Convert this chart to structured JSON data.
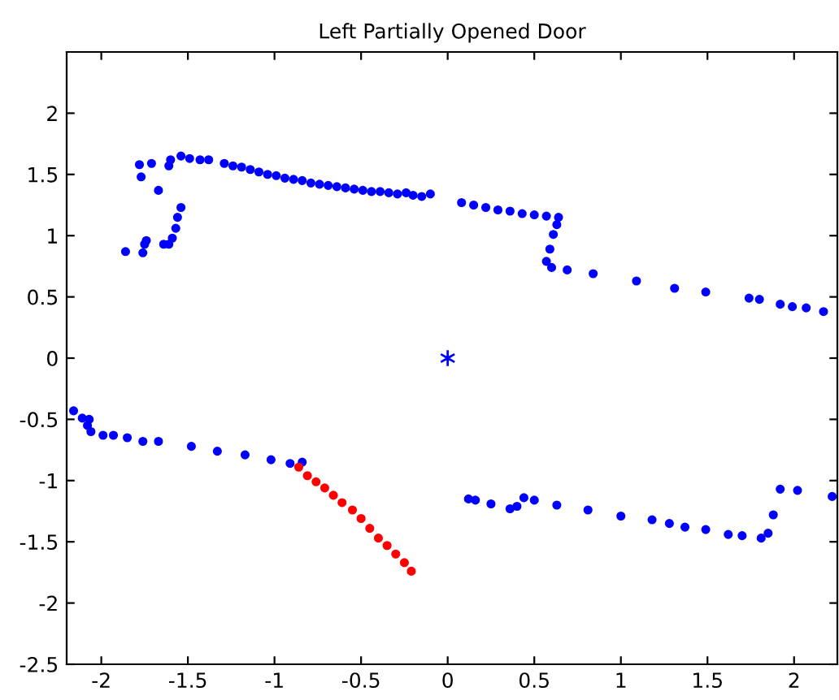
{
  "chart_data": {
    "type": "scatter",
    "title": "Left Partially Opened Door",
    "xlim": [
      -2.2,
      2.25
    ],
    "ylim": [
      -2.5,
      2.5
    ],
    "xticks": [
      -2,
      -1.5,
      -1,
      -0.5,
      0,
      0.5,
      1,
      1.5,
      2
    ],
    "yticks": [
      -2.5,
      -2,
      -1.5,
      -1,
      -0.5,
      0,
      0.5,
      1,
      1.5,
      2
    ],
    "grid": false,
    "legend": false,
    "series": [
      {
        "color": "#0000ff",
        "marker": "circle",
        "x": [
          -1.86,
          -1.78,
          -1.77,
          -1.71,
          -1.67,
          -1.76,
          -1.75,
          -1.74,
          -1.64,
          -1.61,
          -1.59,
          -1.57,
          -1.56,
          -1.54,
          -1.61,
          -1.6,
          -1.54,
          -1.49,
          -1.43,
          -1.38,
          -1.29,
          -1.24,
          -1.19,
          -1.14,
          -1.09,
          -1.04,
          -0.99,
          -0.94,
          -0.89,
          -0.84,
          -0.79,
          -0.74,
          -0.69,
          -0.64,
          -0.59,
          -0.54,
          -0.49,
          -0.44,
          -0.39,
          -0.34,
          -0.29,
          -0.24,
          -0.2,
          -0.15,
          -0.1,
          0.08,
          0.15,
          0.22,
          0.29,
          0.36,
          0.43,
          0.5,
          0.57,
          0.64,
          0.63,
          0.61,
          0.59,
          0.57,
          0.6,
          0.69,
          0.84,
          1.09,
          1.31,
          1.49,
          1.74,
          1.8,
          1.92,
          1.99,
          2.07,
          2.17,
          -2.16,
          -2.11,
          -2.07,
          -2.08,
          -2.06,
          -1.99,
          -1.93,
          -1.85,
          -1.76,
          -1.67,
          -1.48,
          -1.33,
          -1.17,
          -1.02,
          -0.91,
          -0.84,
          0.12,
          0.16,
          0.25,
          0.36,
          0.4,
          0.44,
          0.5,
          0.63,
          0.81,
          1.0,
          1.18,
          1.28,
          1.37,
          1.49,
          1.62,
          1.7,
          1.81,
          1.85,
          1.88,
          1.92,
          2.02,
          2.22
        ],
        "values": [
          0.87,
          1.58,
          1.48,
          1.59,
          1.37,
          0.86,
          0.93,
          0.96,
          0.93,
          0.93,
          0.98,
          1.06,
          1.15,
          1.23,
          1.57,
          1.62,
          1.65,
          1.63,
          1.62,
          1.62,
          1.59,
          1.57,
          1.56,
          1.54,
          1.52,
          1.5,
          1.49,
          1.47,
          1.46,
          1.45,
          1.43,
          1.42,
          1.41,
          1.4,
          1.39,
          1.38,
          1.37,
          1.36,
          1.36,
          1.35,
          1.34,
          1.35,
          1.33,
          1.32,
          1.34,
          1.27,
          1.25,
          1.23,
          1.21,
          1.2,
          1.18,
          1.17,
          1.16,
          1.15,
          1.09,
          1.01,
          0.89,
          0.79,
          0.74,
          0.72,
          0.69,
          0.63,
          0.57,
          0.54,
          0.49,
          0.48,
          0.44,
          0.42,
          0.41,
          0.38,
          -0.43,
          -0.49,
          -0.5,
          -0.55,
          -0.6,
          -0.63,
          -0.63,
          -0.65,
          -0.68,
          -0.68,
          -0.72,
          -0.76,
          -0.79,
          -0.83,
          -0.86,
          -0.85,
          -1.15,
          -1.16,
          -1.19,
          -1.23,
          -1.21,
          -1.14,
          -1.16,
          -1.2,
          -1.24,
          -1.29,
          -1.32,
          -1.35,
          -1.38,
          -1.4,
          -1.44,
          -1.45,
          -1.47,
          -1.43,
          -1.28,
          -1.07,
          -1.08,
          -1.13
        ]
      },
      {
        "color": "#ff0000",
        "marker": "circle",
        "x": [
          -0.86,
          -0.81,
          -0.76,
          -0.71,
          -0.66,
          -0.61,
          -0.55,
          -0.5,
          -0.45,
          -0.4,
          -0.35,
          -0.3,
          -0.25,
          -0.21
        ],
        "values": [
          -0.89,
          -0.96,
          -1.01,
          -1.06,
          -1.12,
          -1.18,
          -1.24,
          -1.31,
          -1.39,
          -1.47,
          -1.53,
          -1.6,
          -1.67,
          -1.74
        ]
      },
      {
        "color": "#0000ff",
        "marker": "cross",
        "x": [
          0
        ],
        "values": [
          0
        ]
      }
    ]
  }
}
